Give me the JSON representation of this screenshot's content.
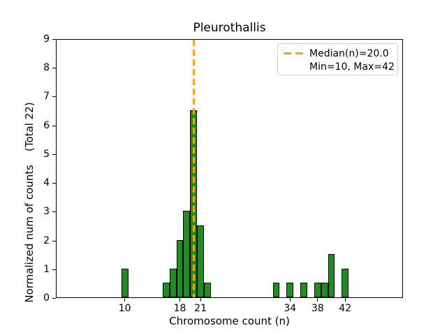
{
  "title": "Pleurothallis",
  "axes": {
    "xlabel": "Chromosome count (n)",
    "ylabel": "Normalized num of counts    (Total 22)"
  },
  "legend": {
    "line1": "Median(n)=20.0",
    "line2": "Min=10, Max=42"
  },
  "colors": {
    "bar_fill": "#228B22",
    "bar_edge": "#000000",
    "median_line": "#FFA500",
    "frame": "#000000",
    "legend_border": "#cccccc",
    "text": "#000000"
  },
  "chart_data": {
    "type": "bar",
    "title": "Pleurothallis",
    "xlabel": "Chromosome count (n)",
    "ylabel": "Normalized num of counts    (Total 22)",
    "x": [
      10,
      16,
      17,
      18,
      19,
      20,
      21,
      22,
      32,
      34,
      36,
      38,
      39,
      40,
      42
    ],
    "values": [
      1.0,
      0.5,
      1.0,
      2.0,
      3.0,
      6.5,
      2.5,
      0.5,
      0.5,
      0.5,
      0.5,
      0.5,
      0.5,
      1.5,
      1.0
    ],
    "bar_width": 1.0,
    "xlim": [
      0.1,
      50.5
    ],
    "ylim": [
      0,
      9
    ],
    "xticks": [
      10,
      18,
      21,
      34,
      38,
      42
    ],
    "yticks": [
      0,
      1,
      2,
      3,
      4,
      5,
      6,
      7,
      8,
      9
    ],
    "median_n": 20.0,
    "min_n": 10,
    "max_n": 42,
    "total_counts": 22,
    "legend_entries": [
      "Median(n)=20.0",
      "Min=10, Max=42"
    ],
    "legend_position": "upper right",
    "grid": false
  }
}
